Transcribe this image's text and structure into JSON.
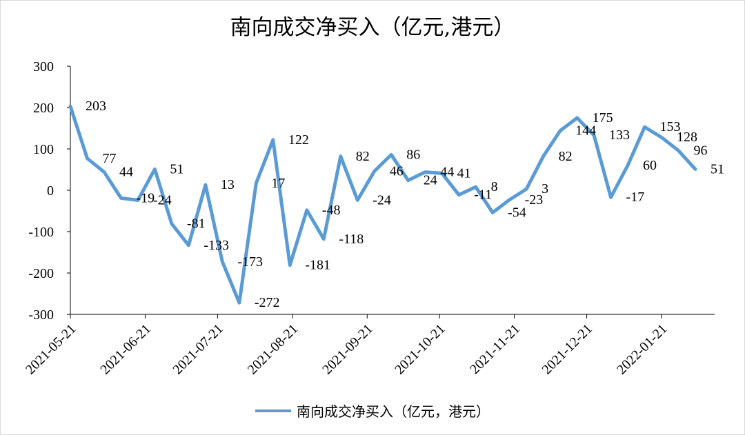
{
  "title": "南向成交净买入（亿元,港元）",
  "legend": {
    "label": "南向成交净买入（亿元，港元）"
  },
  "colors": {
    "series": "#5b9bd5",
    "axis": "#000000"
  },
  "chart_data": {
    "type": "line",
    "title": "南向成交净买入（亿元,港元）",
    "ylim": [
      -300,
      300
    ],
    "yticks": [
      300,
      200,
      100,
      0,
      -100,
      -200,
      -300
    ],
    "xtick_labels": [
      "2021-05-21",
      "2021-06-21",
      "2021-07-21",
      "2021-08-21",
      "2021-09-21",
      "2021-10-21",
      "2021-11-21",
      "2021-12-21",
      "2022-01-21"
    ],
    "x": [
      "2021-05-21",
      "2021-05-28",
      "2021-06-04",
      "2021-06-11",
      "2021-06-18",
      "2021-06-25",
      "2021-07-02",
      "2021-07-09",
      "2021-07-16",
      "2021-07-23",
      "2021-07-30",
      "2021-08-06",
      "2021-08-13",
      "2021-08-20",
      "2021-08-27",
      "2021-09-03",
      "2021-09-10",
      "2021-09-17",
      "2021-09-24",
      "2021-10-01",
      "2021-10-08",
      "2021-10-15",
      "2021-10-22",
      "2021-10-29",
      "2021-11-05",
      "2021-11-12",
      "2021-11-19",
      "2021-11-26",
      "2021-12-03",
      "2021-12-10",
      "2021-12-17",
      "2021-12-24",
      "2021-12-31",
      "2022-01-07",
      "2022-01-14",
      "2022-01-21",
      "2022-01-28",
      "2022-02-04"
    ],
    "series": [
      {
        "name": "南向成交净买入（亿元，港元）",
        "values": [
          203,
          77,
          44,
          -19,
          -24,
          51,
          -81,
          -133,
          13,
          -173,
          -272,
          17,
          122,
          -181,
          -48,
          -118,
          82,
          -24,
          46,
          86,
          24,
          44,
          41,
          -11,
          8,
          -54,
          -23,
          3,
          82,
          144,
          175,
          133,
          -17,
          60,
          153,
          128,
          96,
          51
        ],
        "data_labels": [
          "203",
          "77",
          "44",
          "-19",
          "-24",
          "51",
          "-81",
          "-133",
          "13",
          "-173",
          "-272",
          "17",
          "122",
          "-181",
          "-48",
          "-118",
          "82",
          "-24",
          "46",
          "86",
          "24",
          "44",
          "41",
          "-11",
          "8",
          "-54",
          "-23",
          "3",
          "82",
          "144",
          "175",
          "133",
          "-17",
          "60",
          "153",
          "128",
          "96",
          "51"
        ]
      }
    ],
    "grid": false,
    "legend_position": "bottom"
  }
}
